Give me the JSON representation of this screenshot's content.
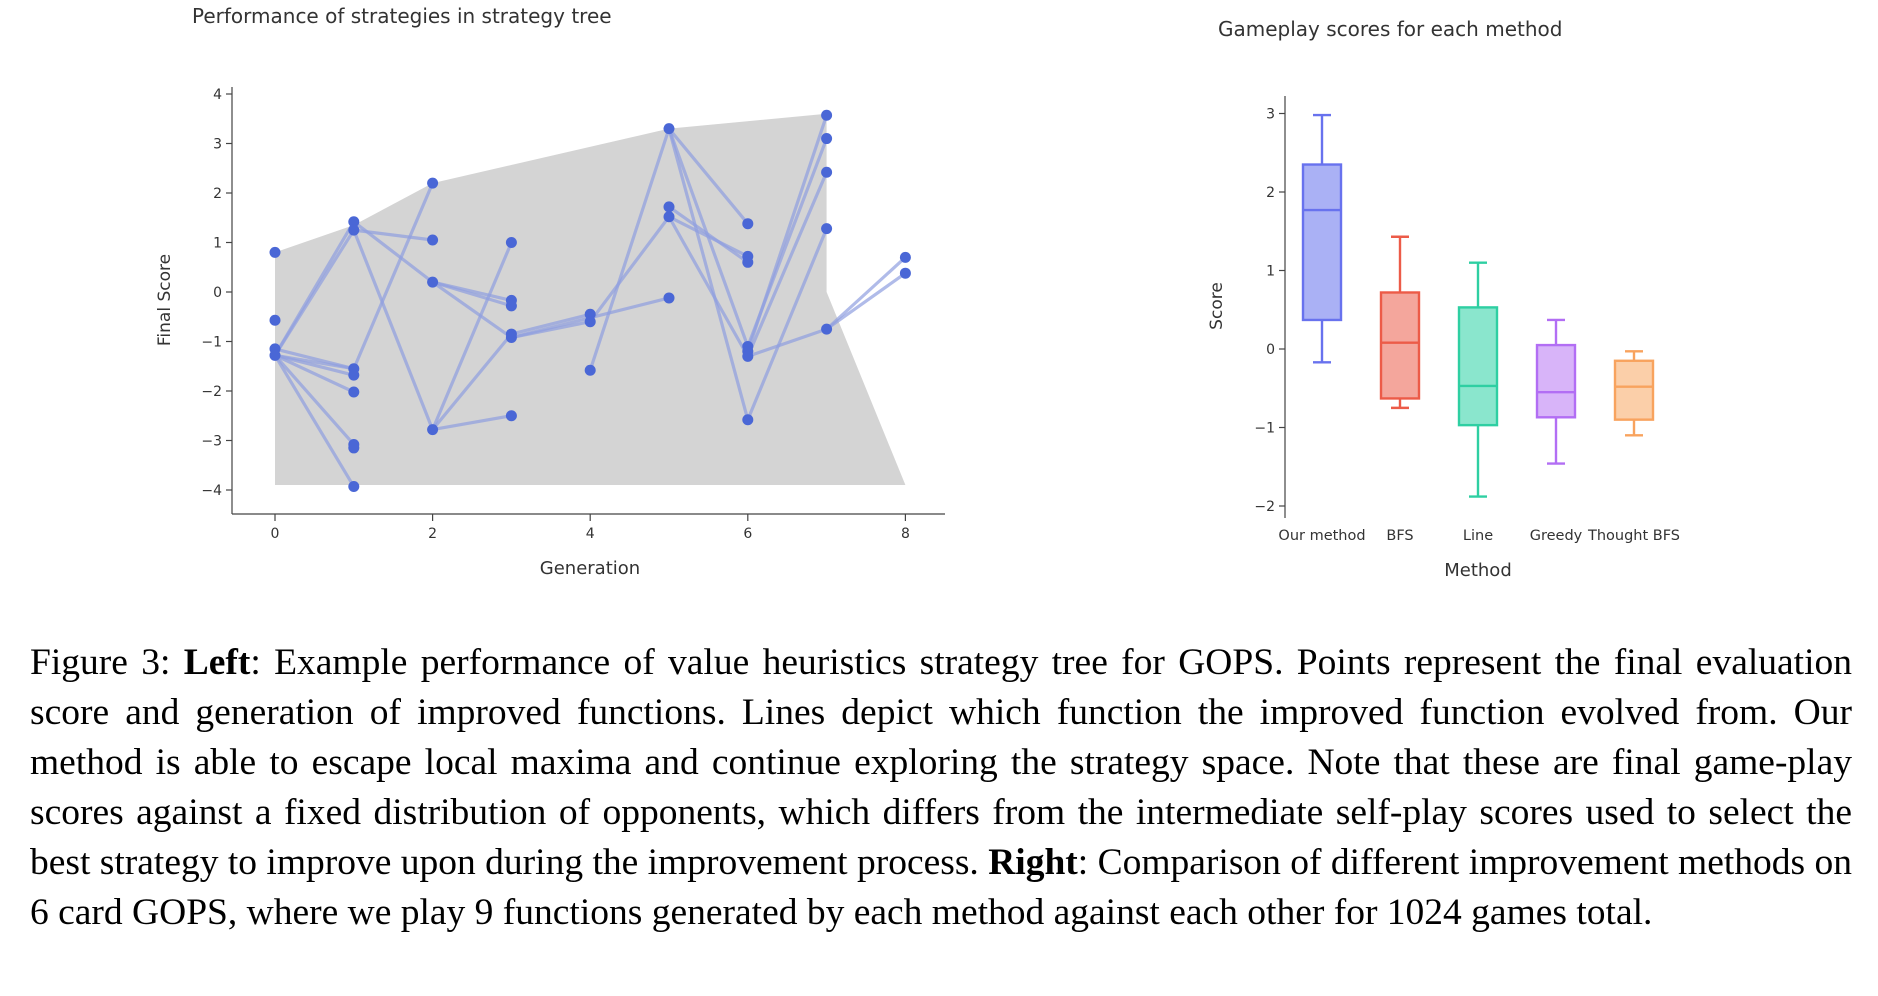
{
  "chart_data": [
    {
      "type": "scatter",
      "title": "Performance of strategies in strategy tree",
      "xlabel": "Generation",
      "ylabel": "Final Score",
      "xlim": [
        -0.5,
        8.5
      ],
      "ylim": [
        -4.5,
        4.2
      ],
      "xticks": [
        0,
        2,
        4,
        6,
        8
      ],
      "yticks": [
        4,
        3,
        2,
        1,
        0,
        -1,
        -2,
        -3,
        -4
      ],
      "ytick_labels": [
        "4",
        "3",
        "2",
        "1",
        "0",
        "−1",
        "−2",
        "−3",
        "−4"
      ],
      "grid": false,
      "colors": {
        "points": "#4a67d6",
        "edges": "#8e9ee0",
        "envelope": "#d4d4d4"
      },
      "envelope": [
        [
          0,
          0.8
        ],
        [
          1,
          1.35
        ],
        [
          2,
          2.2
        ],
        [
          5,
          3.3
        ],
        [
          7,
          3.6
        ],
        [
          7,
          0
        ],
        [
          8,
          -3.9
        ],
        [
          0,
          -3.9
        ]
      ],
      "points": [
        {
          "id": "a0",
          "x": 0,
          "y": 0.8
        },
        {
          "id": "a1",
          "x": 0,
          "y": -0.57
        },
        {
          "id": "a2",
          "x": 0,
          "y": -1.15
        },
        {
          "id": "a3",
          "x": 0,
          "y": -1.28
        },
        {
          "id": "b1",
          "x": 1,
          "y": 1.42
        },
        {
          "id": "b2",
          "x": 1,
          "y": 1.25
        },
        {
          "id": "b3",
          "x": 1,
          "y": -1.55
        },
        {
          "id": "b4",
          "x": 1,
          "y": -1.68
        },
        {
          "id": "b5",
          "x": 1,
          "y": -2.02
        },
        {
          "id": "b6",
          "x": 1,
          "y": -3.08
        },
        {
          "id": "b7",
          "x": 1,
          "y": -3.15
        },
        {
          "id": "b8",
          "x": 1,
          "y": -3.93
        },
        {
          "id": "c1",
          "x": 2,
          "y": 2.2
        },
        {
          "id": "c2",
          "x": 2,
          "y": 1.05
        },
        {
          "id": "c3",
          "x": 2,
          "y": 0.2
        },
        {
          "id": "c4",
          "x": 2,
          "y": -2.78
        },
        {
          "id": "d1",
          "x": 3,
          "y": 1.0
        },
        {
          "id": "d2",
          "x": 3,
          "y": -0.17
        },
        {
          "id": "d3",
          "x": 3,
          "y": -0.28
        },
        {
          "id": "d4",
          "x": 3,
          "y": -0.85
        },
        {
          "id": "d5",
          "x": 3,
          "y": -0.92
        },
        {
          "id": "d6",
          "x": 3,
          "y": -2.5
        },
        {
          "id": "e1",
          "x": 4,
          "y": -0.45
        },
        {
          "id": "e2",
          "x": 4,
          "y": -0.6
        },
        {
          "id": "e3",
          "x": 4,
          "y": -1.58
        },
        {
          "id": "f1",
          "x": 5,
          "y": 3.3
        },
        {
          "id": "f2",
          "x": 5,
          "y": 1.72
        },
        {
          "id": "f3",
          "x": 5,
          "y": 1.52
        },
        {
          "id": "f4",
          "x": 5,
          "y": -0.12
        },
        {
          "id": "g1",
          "x": 6,
          "y": 1.38
        },
        {
          "id": "g2",
          "x": 6,
          "y": 0.72
        },
        {
          "id": "g3",
          "x": 6,
          "y": 0.6
        },
        {
          "id": "g4",
          "x": 6,
          "y": -1.1
        },
        {
          "id": "g5",
          "x": 6,
          "y": -1.2
        },
        {
          "id": "g6",
          "x": 6,
          "y": -1.3
        },
        {
          "id": "g7",
          "x": 6,
          "y": -2.58
        },
        {
          "id": "h1",
          "x": 7,
          "y": 3.57
        },
        {
          "id": "h2",
          "x": 7,
          "y": 3.1
        },
        {
          "id": "h3",
          "x": 7,
          "y": 2.42
        },
        {
          "id": "h4",
          "x": 7,
          "y": 1.28
        },
        {
          "id": "h5",
          "x": 7,
          "y": -0.75
        },
        {
          "id": "i1",
          "x": 8,
          "y": 0.7
        },
        {
          "id": "i2",
          "x": 8,
          "y": 0.38
        }
      ],
      "edges": [
        [
          "a3",
          "b1"
        ],
        [
          "a3",
          "b2"
        ],
        [
          "a3",
          "b3"
        ],
        [
          "a3",
          "b4"
        ],
        [
          "a3",
          "b5"
        ],
        [
          "a3",
          "b6"
        ],
        [
          "a3",
          "b8"
        ],
        [
          "a2",
          "b3"
        ],
        [
          "b2",
          "c2"
        ],
        [
          "b2",
          "c4"
        ],
        [
          "b3",
          "c1"
        ],
        [
          "b1",
          "c3"
        ],
        [
          "c3",
          "d2"
        ],
        [
          "c3",
          "d3"
        ],
        [
          "c3",
          "d5"
        ],
        [
          "c4",
          "d4"
        ],
        [
          "c4",
          "d6"
        ],
        [
          "c4",
          "d1"
        ],
        [
          "d4",
          "e1"
        ],
        [
          "d5",
          "e2"
        ],
        [
          "d5",
          "f4"
        ],
        [
          "e3",
          "f1"
        ],
        [
          "e2",
          "f3"
        ],
        [
          "f1",
          "g4"
        ],
        [
          "f1",
          "g1"
        ],
        [
          "f1",
          "g7"
        ],
        [
          "f2",
          "g3"
        ],
        [
          "f3",
          "g2"
        ],
        [
          "f3",
          "g6"
        ],
        [
          "g5",
          "h1"
        ],
        [
          "g4",
          "h2"
        ],
        [
          "g6",
          "h3"
        ],
        [
          "g7",
          "h4"
        ],
        [
          "g6",
          "h5"
        ],
        [
          "h5",
          "i1"
        ],
        [
          "h5",
          "i2"
        ]
      ]
    },
    {
      "type": "box",
      "title": "Gameplay scores for each method",
      "xlabel": "Method",
      "ylabel": "Score",
      "ylim": [
        -2.2,
        3.2
      ],
      "yticks": [
        3,
        2,
        1,
        0,
        -1,
        -2
      ],
      "ytick_labels": [
        "3",
        "2",
        "1",
        "0",
        "−1",
        "−2"
      ],
      "grid": false,
      "series": [
        {
          "name": "Our method",
          "min": -0.17,
          "q1": 0.37,
          "median": 1.77,
          "q3": 2.35,
          "max": 2.98,
          "color": "#6872ee",
          "fill": "#aab1f5"
        },
        {
          "name": "BFS",
          "min": -0.75,
          "q1": -0.63,
          "median": 0.08,
          "q3": 0.72,
          "max": 1.43,
          "color": "#ec5b48",
          "fill": "#f4a69c"
        },
        {
          "name": "Line",
          "min": -1.88,
          "q1": -0.97,
          "median": -0.47,
          "q3": 0.53,
          "max": 1.1,
          "color": "#2ecfa2",
          "fill": "#8ae6cd"
        },
        {
          "name": "Greedy",
          "min": -1.46,
          "q1": -0.87,
          "median": -0.55,
          "q3": 0.05,
          "max": 0.37,
          "color": "#b26ef4",
          "fill": "#d8b4f9"
        },
        {
          "name": "Thought BFS",
          "min": -1.1,
          "q1": -0.9,
          "median": -0.48,
          "q3": -0.15,
          "max": -0.03,
          "color": "#f8a35e",
          "fill": "#fbcfa9"
        }
      ]
    }
  ],
  "caption": {
    "label": "Figure 3: ",
    "left_bold": "Left",
    "left_text": ": Example performance of value heuristics strategy tree for GOPS. Points represent the final evaluation score and generation of improved functions. Lines depict which function the improved function evolved from. Our method is able to escape local maxima and continue exploring the strategy space. Note that these are final game-play scores against a fixed distribution of opponents, which differs from the intermediate self-play scores used to select the best strategy to improve upon during the improvement process. ",
    "right_bold": "Right",
    "right_text": ": Comparison of different improvement methods on 6 card GOPS, where we play 9 functions generated by each method against each other for 1024 games total."
  }
}
